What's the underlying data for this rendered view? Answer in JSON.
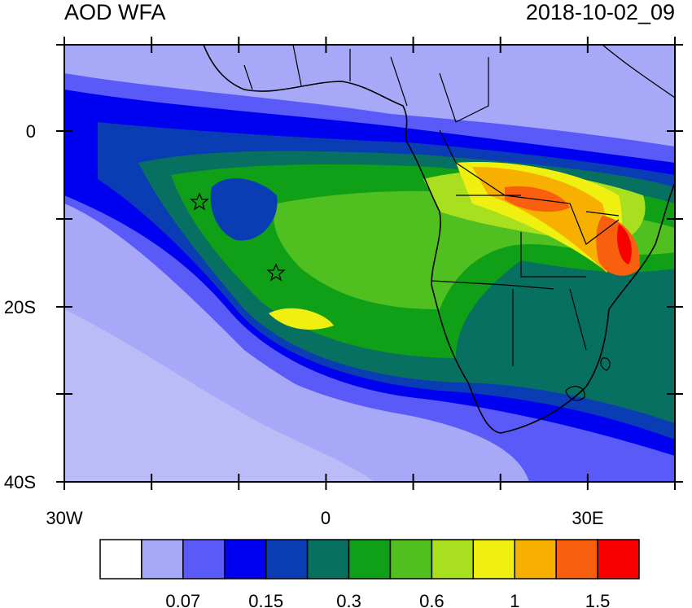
{
  "header": {
    "left_title": "AOD WFA",
    "right_title": "2018-10-02_09"
  },
  "axes": {
    "y_labels": [
      "0",
      "20S",
      "40S"
    ],
    "x_labels": [
      "30W",
      "0",
      "30E"
    ]
  },
  "colorbar": {
    "colors": [
      "#ffffff",
      "#a8a8f8",
      "#5a5af8",
      "#0000f0",
      "#0a3cb4",
      "#087060",
      "#10a018",
      "#50c020",
      "#a8e020",
      "#f0f010",
      "#f8b000",
      "#f86010",
      "#f80000"
    ],
    "labels": [
      "0.07",
      "0.15",
      "0.3",
      "0.6",
      "1",
      "1.5"
    ]
  }
}
